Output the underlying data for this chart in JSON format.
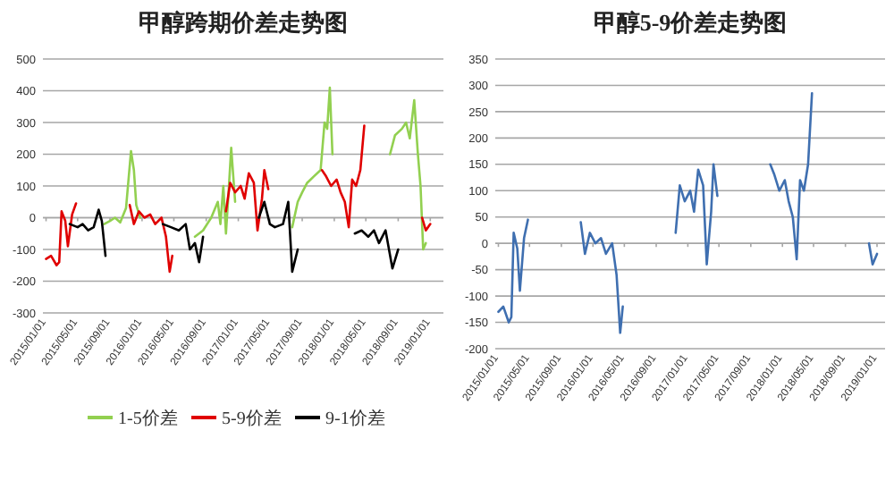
{
  "chart_data": [
    {
      "type": "line",
      "title": "甲醇跨期价差走势图",
      "grid": "y",
      "legend": "bottom",
      "marker": "none",
      "line_style": "solid",
      "xlim": [
        "2014-12-20",
        "2019-02-20"
      ],
      "ylim": [
        -300,
        500
      ],
      "yticks": [
        -300,
        -200,
        -100,
        0,
        100,
        200,
        300,
        400,
        500
      ],
      "xticks": [
        {
          "value": "2015-01-01",
          "label": "2015/01/01"
        },
        {
          "value": "2015-05-01",
          "label": "2015/05/01"
        },
        {
          "value": "2015-09-01",
          "label": "2015/09/01"
        },
        {
          "value": "2016-01-01",
          "label": "2016/01/01"
        },
        {
          "value": "2016-05-01",
          "label": "2016/05/01"
        },
        {
          "value": "2016-09-01",
          "label": "2016/09/01"
        },
        {
          "value": "2017-01-01",
          "label": "2017/01/01"
        },
        {
          "value": "2017-05-01",
          "label": "2017/05/01"
        },
        {
          "value": "2017-09-01",
          "label": "2017/09/01"
        },
        {
          "value": "2018-01-01",
          "label": "2018/01/01"
        },
        {
          "value": "2018-05-01",
          "label": "2018/05/01"
        },
        {
          "value": "2018-09-01",
          "label": "2018/09/01"
        },
        {
          "value": "2019-01-01",
          "label": "2019/01/01"
        }
      ],
      "series": [
        {
          "name": "1-5价差",
          "color": "#92d050",
          "x": [
            "2015-08-10",
            "2015-09-01",
            "2015-09-20",
            "2015-10-10",
            "2015-11-01",
            "2015-11-20",
            "2015-12-01",
            "2015-12-10",
            "2015-12-25",
            "2016-02-01",
            "2016-07-20",
            "2016-08-20",
            "2016-09-20",
            "2016-10-15",
            "2016-10-25",
            "2016-11-05",
            "2016-11-15",
            "2016-11-25",
            "2016-12-05",
            "2016-12-20",
            "2017-03-01",
            "2017-07-25",
            "2017-08-15",
            "2017-09-01",
            "2017-09-20",
            "2017-10-15",
            "2017-11-10",
            "2017-11-25",
            "2017-12-05",
            "2017-12-15",
            "2017-12-25",
            "2018-03-01",
            "2018-08-01",
            "2018-08-20",
            "2018-09-15",
            "2018-10-01",
            "2018-10-15",
            "2018-11-01",
            "2018-11-15",
            "2018-11-25",
            "2018-12-05",
            "2018-12-15"
          ],
          "values": [
            -20,
            -10,
            0,
            -15,
            30,
            210,
            150,
            40,
            0,
            null,
            -60,
            -40,
            0,
            50,
            -20,
            100,
            -50,
            80,
            220,
            50,
            null,
            -30,
            50,
            80,
            110,
            130,
            150,
            300,
            280,
            410,
            200,
            null,
            200,
            260,
            280,
            300,
            250,
            370,
            200,
            100,
            -100,
            -80
          ]
        },
        {
          "name": "5-9价差",
          "color": "#e00000",
          "x": [
            "2015-01-01",
            "2015-01-20",
            "2015-02-10",
            "2015-02-20",
            "2015-03-01",
            "2015-03-15",
            "2015-03-25",
            "2015-04-10",
            "2015-04-25",
            "2015-08-01",
            "2015-11-15",
            "2015-12-01",
            "2015-12-20",
            "2016-01-10",
            "2016-02-01",
            "2016-02-20",
            "2016-03-15",
            "2016-04-01",
            "2016-04-15",
            "2016-04-25",
            "2016-08-01",
            "2016-11-15",
            "2016-12-01",
            "2016-12-20",
            "2017-01-10",
            "2017-01-25",
            "2017-02-10",
            "2017-03-01",
            "2017-03-15",
            "2017-04-01",
            "2017-04-10",
            "2017-04-25",
            "2017-08-01",
            "2017-11-15",
            "2017-12-01",
            "2017-12-20",
            "2018-01-10",
            "2018-01-25",
            "2018-02-10",
            "2018-02-25",
            "2018-03-10",
            "2018-03-25",
            "2018-04-10",
            "2018-04-25",
            "2018-08-01",
            "2018-12-01",
            "2018-12-15",
            "2019-01-01"
          ],
          "values": [
            -130,
            -120,
            -150,
            -140,
            20,
            -10,
            -90,
            10,
            45,
            null,
            40,
            -20,
            20,
            0,
            10,
            -20,
            0,
            -60,
            -170,
            -120,
            null,
            20,
            110,
            80,
            100,
            60,
            140,
            110,
            -40,
            60,
            150,
            90,
            null,
            150,
            130,
            100,
            120,
            80,
            50,
            -30,
            120,
            100,
            150,
            290,
            null,
            0,
            -40,
            -20
          ]
        },
        {
          "name": "9-1价差",
          "color": "#000000",
          "x": [
            "2015-04-01",
            "2015-05-01",
            "2015-05-20",
            "2015-06-10",
            "2015-07-01",
            "2015-07-20",
            "2015-08-01",
            "2015-08-15",
            "2015-12-01",
            "2016-03-20",
            "2016-04-20",
            "2016-05-20",
            "2016-06-15",
            "2016-07-01",
            "2016-07-20",
            "2016-08-05",
            "2016-08-20",
            "2016-12-01",
            "2017-03-20",
            "2017-04-10",
            "2017-05-01",
            "2017-05-20",
            "2017-06-20",
            "2017-07-10",
            "2017-07-25",
            "2017-08-15",
            "2017-12-01",
            "2018-03-20",
            "2018-04-15",
            "2018-05-10",
            "2018-06-01",
            "2018-06-20",
            "2018-07-15",
            "2018-08-10",
            "2018-09-01"
          ],
          "values": [
            -20,
            -30,
            -20,
            -40,
            -30,
            25,
            -10,
            -120,
            null,
            -20,
            -30,
            -40,
            -20,
            -100,
            -80,
            -140,
            -60,
            null,
            0,
            50,
            -20,
            -30,
            -20,
            50,
            -170,
            -100,
            null,
            -50,
            -40,
            -60,
            -40,
            -80,
            -40,
            -160,
            -100
          ]
        }
      ]
    },
    {
      "type": "line",
      "title": "甲醇5-9价差走势图",
      "grid": "y",
      "marker": "none",
      "line_style": "solid",
      "xlim": [
        "2014-12-20",
        "2019-02-01"
      ],
      "ylim": [
        -200,
        350
      ],
      "yticks": [
        -200,
        -150,
        -100,
        -50,
        0,
        50,
        100,
        150,
        200,
        250,
        300,
        350
      ],
      "xticks": [
        {
          "value": "2015-01-01",
          "label": "2015/01/01"
        },
        {
          "value": "2015-05-01",
          "label": "2015/05/01"
        },
        {
          "value": "2015-09-01",
          "label": "2015/09/01"
        },
        {
          "value": "2016-01-01",
          "label": "2016/01/01"
        },
        {
          "value": "2016-05-01",
          "label": "2016/05/01"
        },
        {
          "value": "2016-09-01",
          "label": "2016/09/01"
        },
        {
          "value": "2017-01-01",
          "label": "2017/01/01"
        },
        {
          "value": "2017-05-01",
          "label": "2017/05/01"
        },
        {
          "value": "2017-09-01",
          "label": "2017/09/01"
        },
        {
          "value": "2018-01-01",
          "label": "2018/01/01"
        },
        {
          "value": "2018-05-01",
          "label": "2018/05/01"
        },
        {
          "value": "2018-09-01",
          "label": "2018/09/01"
        },
        {
          "value": "2019-01-01",
          "label": "2019/01/01"
        }
      ],
      "series": [
        {
          "color": "#3f6fb0",
          "x": [
            "2015-01-01",
            "2015-01-20",
            "2015-02-10",
            "2015-02-20",
            "2015-03-01",
            "2015-03-15",
            "2015-03-25",
            "2015-04-10",
            "2015-04-25",
            "2015-08-01",
            "2015-11-15",
            "2015-12-01",
            "2015-12-20",
            "2016-01-10",
            "2016-02-01",
            "2016-02-20",
            "2016-03-15",
            "2016-04-01",
            "2016-04-15",
            "2016-04-25",
            "2016-08-01",
            "2016-11-15",
            "2016-12-01",
            "2016-12-20",
            "2017-01-10",
            "2017-01-25",
            "2017-02-10",
            "2017-03-01",
            "2017-03-15",
            "2017-04-01",
            "2017-04-10",
            "2017-04-25",
            "2017-08-01",
            "2017-11-15",
            "2017-12-01",
            "2017-12-20",
            "2018-01-10",
            "2018-01-25",
            "2018-02-10",
            "2018-02-25",
            "2018-03-10",
            "2018-03-25",
            "2018-04-10",
            "2018-04-25",
            "2018-08-01",
            "2018-12-01",
            "2018-12-15",
            "2019-01-01"
          ],
          "values": [
            -130,
            -120,
            -150,
            -140,
            20,
            -10,
            -90,
            10,
            45,
            null,
            40,
            -20,
            20,
            0,
            10,
            -20,
            0,
            -60,
            -170,
            -120,
            null,
            20,
            110,
            80,
            100,
            60,
            140,
            110,
            -40,
            60,
            150,
            90,
            null,
            150,
            130,
            100,
            120,
            80,
            50,
            -30,
            120,
            100,
            150,
            285,
            null,
            0,
            -40,
            -20
          ]
        }
      ]
    }
  ]
}
